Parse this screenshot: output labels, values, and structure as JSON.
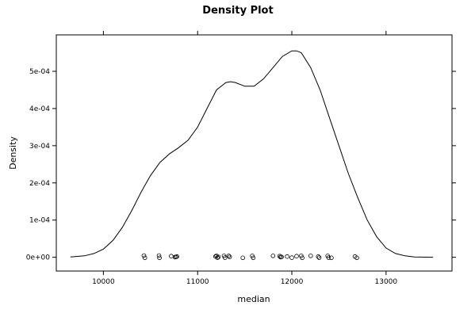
{
  "chart_data": {
    "type": "line",
    "title": "Density Plot",
    "xlabel": "median",
    "ylabel": "Density",
    "xlim": [
      9500,
      13700
    ],
    "ylim": [
      -3.7e-05,
      0.000598
    ],
    "x_ticks": [
      10000,
      11000,
      12000,
      13000
    ],
    "x_tick_labels": [
      "10000",
      "11000",
      "12000",
      "13000"
    ],
    "y_ticks": [
      0,
      0.0001,
      0.0002,
      0.0003,
      0.0004,
      0.0005
    ],
    "y_tick_labels": [
      "0e+00",
      "1e-04",
      "2e-04",
      "3e-04",
      "4e-04",
      "5e-04"
    ],
    "grid": false,
    "series": [
      {
        "type": "line",
        "x": [
          9650,
          9800,
          9900,
          10000,
          10100,
          10200,
          10300,
          10400,
          10500,
          10600,
          10700,
          10800,
          10900,
          11000,
          11100,
          11200,
          11300,
          11350,
          11400,
          11500,
          11600,
          11700,
          11800,
          11900,
          12000,
          12050,
          12100,
          12200,
          12300,
          12400,
          12500,
          12600,
          12700,
          12800,
          12900,
          13000,
          13100,
          13200,
          13300,
          13500
        ],
        "y": [
          1e-06,
          4e-06,
          1e-05,
          2.2e-05,
          4.5e-05,
          8e-05,
          0.000125,
          0.000175,
          0.00022,
          0.000255,
          0.000278,
          0.000295,
          0.000315,
          0.00035,
          0.0004,
          0.00045,
          0.00047,
          0.000472,
          0.00047,
          0.00046,
          0.00046,
          0.00048,
          0.00051,
          0.00054,
          0.000555,
          0.000555,
          0.00055,
          0.00051,
          0.00045,
          0.000375,
          0.0003,
          0.000225,
          0.00016,
          0.0001,
          5.5e-05,
          2.5e-05,
          1e-05,
          4e-06,
          1e-06,
          0.0
        ]
      },
      {
        "type": "scatter",
        "x": [
          10430,
          10440,
          10590,
          10595,
          10720,
          10760,
          10770,
          10780,
          11190,
          11200,
          11210,
          11220,
          11280,
          11290,
          11330,
          11340,
          11480,
          11580,
          11590,
          11800,
          11870,
          11880,
          11890,
          11950,
          12000,
          12050,
          12100,
          12110,
          12200,
          12280,
          12290,
          12380,
          12390,
          12420,
          12670,
          12690
        ],
        "y": [
          4.5e-06,
          -1.5e-06,
          4.5e-06,
          -1.5e-06,
          3e-06,
          5e-07,
          1e-06,
          2e-06,
          2e-06,
          4e-06,
          -1e-06,
          1e-06,
          4e-06,
          -1e-06,
          4e-06,
          1e-06,
          -1.5e-06,
          4e-06,
          -1.5e-06,
          4e-06,
          3e-06,
          5e-07,
          1e-06,
          2e-06,
          -1e-06,
          3e-06,
          4e-06,
          -1.5e-06,
          4e-06,
          2e-06,
          -1e-06,
          4e-06,
          -1e-06,
          -1.5e-06,
          2e-06,
          -1.5e-06
        ]
      }
    ]
  }
}
